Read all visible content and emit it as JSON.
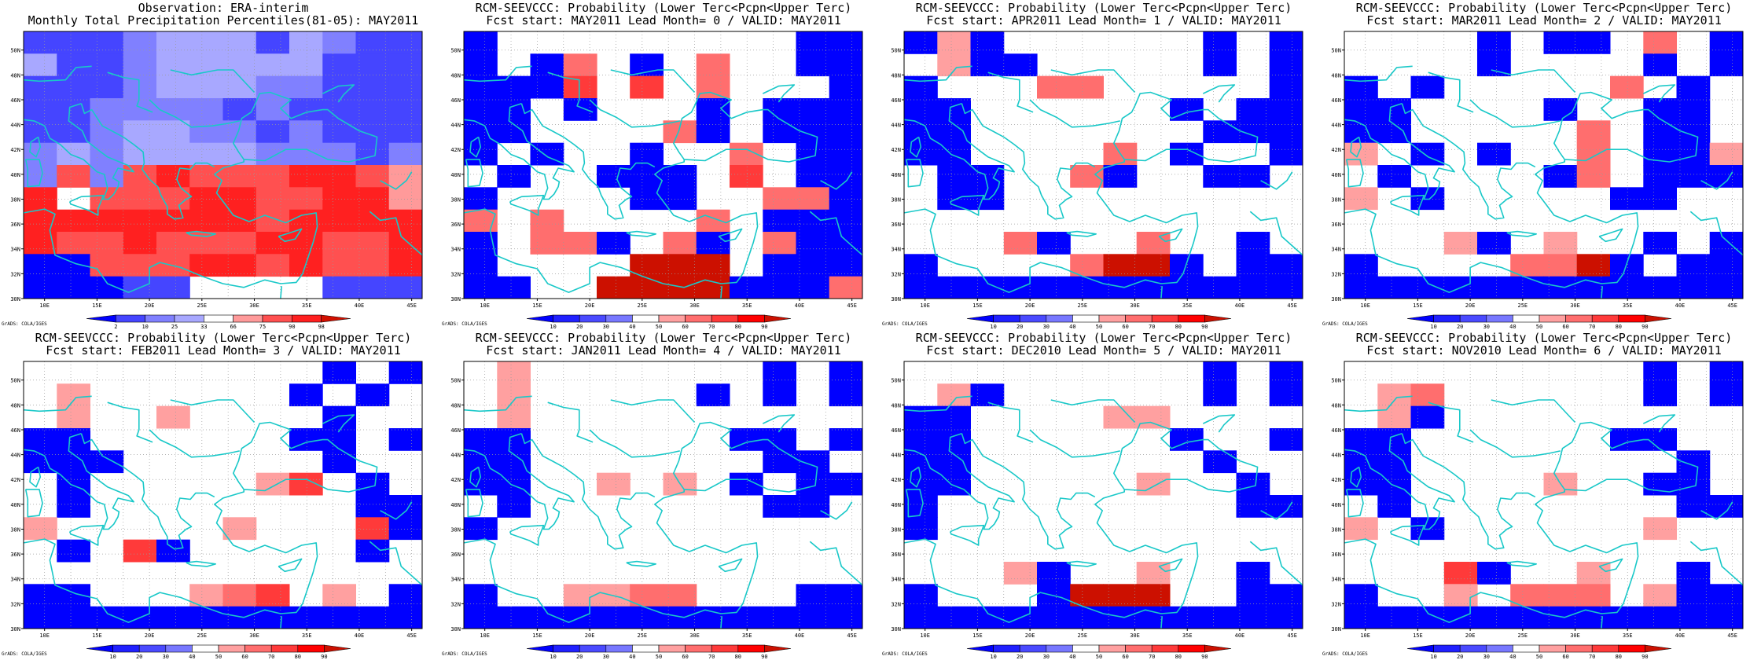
{
  "colors": {
    "coast": "#19c8c8",
    "grid": "#9a9a9a",
    "frame": "#000000",
    "text": "#000000",
    "white": "#ffffff",
    "obs_palette": [
      "#0000ff",
      "#4545ff",
      "#8080ff",
      "#a8a8ff",
      "#ffffff",
      "#ff9a9a",
      "#ff5050",
      "#ff2020",
      "#d21000"
    ],
    "prob_palette": [
      "#0000ff",
      "#2020ff",
      "#4a4aff",
      "#7878ff",
      "#ffffff",
      "#ffa0a0",
      "#ff6e6e",
      "#ff3a3a",
      "#ff0000",
      "#cc1000"
    ]
  },
  "lat_ticks": [
    "30N",
    "32N",
    "34N",
    "36N",
    "38N",
    "40N",
    "42N",
    "44N",
    "46N",
    "48N",
    "50N"
  ],
  "lon_ticks": [
    "10E",
    "15E",
    "20E",
    "25E",
    "30E",
    "35E",
    "40E",
    "45E"
  ],
  "grads_credit": "GrADS: COLA/IGES",
  "panels": [
    {
      "id": "obs",
      "title1": "Observation: ERA-interim",
      "title2": "Monthly Total Precipitation Percentiles(81-05): MAY2011",
      "colorbar_labels": [
        "2",
        "10",
        "25",
        "33",
        "66",
        "75",
        "90",
        "98"
      ],
      "palette": "obs_palette",
      "grid": [
        "BBBCDDDBDCBB",
        "DBBCDDDDDBBB",
        "BBBCDDDCCBBB",
        "BBCCCCBCBBBB",
        "BBCDDCCBCBBB",
        "CDCDDDDCCCBC",
        "CGCGHGGGHHGF",
        "HEGGGHHGGHHF",
        "HHHHHHHGHHHH",
        "HGGHGGGHHGGH",
        "AAGGGHHGHGGH",
        "AAABBEEEEBBB"
      ]
    },
    {
      "id": "lead0",
      "title1": "RCM-SEEVCCC: Probability (Lower Terc<Pcpn<Upper Terc)",
      "title2": "Fcst start: MAY2011  Lead Month= 0 / VALID: MAY2011",
      "colorbar_labels": [
        "10",
        "20",
        "30",
        "40",
        "50",
        "60",
        "70",
        "80",
        "90"
      ],
      "palette": "prob_palette",
      "grid": [
        "AEEEEEEEEEAA",
        "AEAGEAEGEEAA",
        "AAAHEHEGEEEA",
        "AAEAEEEAEAAA",
        "AAEEEEGAEAAA",
        "AEAEEAEEGEAA",
        "EAEEAAAEHEAA",
        "AEEEEAAEEGGA",
        "GEGEEEEGEAAA",
        "AEGGAEGAEGAA",
        "AEEEEJJJEAAA",
        "AAEEJJJJAAAG"
      ]
    },
    {
      "id": "lead1",
      "title1": "RCM-SEEVCCC: Probability (Lower Terc<Pcpn<Upper Terc)",
      "title2": "Fcst start: APR2011  Lead Month= 1 / VALID: MAY2011",
      "colorbar_labels": [
        "10",
        "20",
        "30",
        "40",
        "50",
        "60",
        "70",
        "80",
        "90"
      ],
      "palette": "prob_palette",
      "grid": [
        "AFAEEEEEEAEA",
        "EFAAEEEEEAEA",
        "AEEEGGEEEEEA",
        "AAEEEEEEAEAA",
        "AAEEEEEEEAAA",
        "AAEEEEGEAEEA",
        "EAAEEGAEEAAE",
        "EAAEEEEEEEEE",
        "EEEEEEEEEEEE",
        "EEEGAEEGEEAE",
        "AEEEEGJJAEAA",
        "AAAAAAAAAAAA"
      ]
    },
    {
      "id": "lead2",
      "title1": "RCM-SEEVCCC: Probability (Lower Terc<Pcpn<Upper Terc)",
      "title2": "Fcst start: MAR2011  Lead Month= 2 / VALID: MAY2011",
      "colorbar_labels": [
        "10",
        "20",
        "30",
        "40",
        "50",
        "60",
        "70",
        "80",
        "90"
      ],
      "palette": "prob_palette",
      "grid": [
        "EEEEAEAAEGEA",
        "EEEEAEEEEAEA",
        "AEAEEEEEGEAE",
        "AAEEEEAEEAAE",
        "AAEEEEEGEAAE",
        "FEAEAEEGEAAF",
        "EAEEEEAGEAAA",
        "FEAEEEEEAAEE",
        "EEEEEEEEEEEE",
        "EEEFAEFEEAEA",
        "AEEEEGGJAEAA",
        "AAAAAAAAAAAA"
      ]
    },
    {
      "id": "lead3",
      "title1": "RCM-SEEVCCC: Probability (Lower Terc<Pcpn<Upper Terc)",
      "title2": "Fcst start: FEB2011  Lead Month= 3 / VALID: MAY2011",
      "colorbar_labels": [
        "10",
        "20",
        "30",
        "40",
        "50",
        "60",
        "70",
        "80",
        "90"
      ],
      "palette": "prob_palette",
      "grid": [
        "EEEEEEEEEAEA",
        "EFEEEEEEAEAE",
        "EFEEFEEEEAEE",
        "AAEEEEEEAAEA",
        "AAAEEEEEEAEE",
        "EAEEEEEFHEAE",
        "EAEEEEEEEEAA",
        "FEEEEEFEEEHA",
        "EAEHAEEEEEAE",
        "EEEEEEEEEEEE",
        "AAEEEFGHEFEA",
        "AAAAAAAAAAAA"
      ]
    },
    {
      "id": "lead4",
      "title1": "RCM-SEEVCCC: Probability (Lower Terc<Pcpn<Upper Terc)",
      "title2": "Fcst start: JAN2011  Lead Month= 4 / VALID: MAY2011",
      "colorbar_labels": [
        "10",
        "20",
        "30",
        "40",
        "50",
        "60",
        "70",
        "80",
        "90"
      ],
      "palette": "prob_palette",
      "grid": [
        "EFEEEEEEEAEA",
        "EFEEEEEAEAEA",
        "EFEEEEEEEEEE",
        "AAEEEEEEAAEA",
        "AAEEEEEEEAAE",
        "AAEEFEFEAEAA",
        "EAEEEEEEEAAE",
        "AEEEEEEEEEEE",
        "EEEEEEEEEEEE",
        "EEEEEEEEEEEE",
        "AEEFFGGEEEAA",
        "AAAAAAAAAAAA"
      ]
    },
    {
      "id": "lead5",
      "title1": "RCM-SEEVCCC: Probability (Lower Terc<Pcpn<Upper Terc)",
      "title2": "Fcst start: DEC2010  Lead Month= 5 / VALID: MAY2011",
      "colorbar_labels": [
        "10",
        "20",
        "30",
        "40",
        "50",
        "60",
        "70",
        "80",
        "90"
      ],
      "palette": "prob_palette",
      "grid": [
        "EEEEEEEEEAEA",
        "EFAEEEEEEAEA",
        "AAEEEEFFEEEE",
        "AAEEEEEEAEEA",
        "AAEEEEEEEAEE",
        "AAEEEEEFEEAE",
        "AEEEEEEEEEAA",
        "AEEEEEEEEEEE",
        "EEEEEEEEEEEE",
        "EEEFAEEFEEAE",
        "AEEEAJJJEEAA",
        "AAAAAAAAAAAA"
      ]
    },
    {
      "id": "lead6",
      "title1": "RCM-SEEVCCC: Probability (Lower Terc<Pcpn<Upper Terc)",
      "title2": "Fcst start: NOV2010  Lead Month= 6 / VALID: MAY2011",
      "colorbar_labels": [
        "10",
        "20",
        "30",
        "40",
        "50",
        "60",
        "70",
        "80",
        "90"
      ],
      "palette": "prob_palette",
      "grid": [
        "EEEEEEEEEAEA",
        "EFGEEEEEEAEA",
        "EFAEEEEEEEEE",
        "AAEEEEEEAAEE",
        "AAEEEEEEEEAE",
        "AAEEEEFEEAAE",
        "EAEEEEEEEEAA",
        "FEAEEEEEEFEE",
        "EEEEEEEEEEEE",
        "EEEHAEEFEEAE",
        "AEEFEGGGEFAA",
        "AAAAAAAAAAAA"
      ]
    }
  ]
}
